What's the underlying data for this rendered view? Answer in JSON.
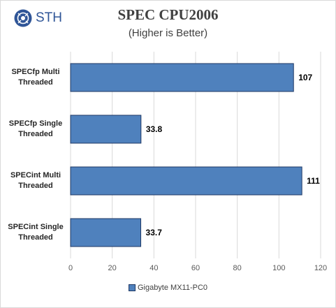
{
  "logo": {
    "text": "STH",
    "icon": "sth-gear-logo-icon"
  },
  "colors": {
    "bar_fill": "#4f81bd",
    "bar_stroke": "#1f3864",
    "grid": "#d9d9d9",
    "axis_text": "#595959"
  },
  "chart_data": {
    "type": "bar",
    "orientation": "horizontal",
    "title": "SPEC CPU2006",
    "subtitle": "(Higher is Better)",
    "categories": [
      "SPECfp Multi Threaded",
      "SPECfp Single Threaded",
      "SPECint Multi Threaded",
      "SPECint Single Threaded"
    ],
    "category_lines": [
      [
        "SPECfp Multi",
        "Threaded"
      ],
      [
        "SPECfp Single",
        "Threaded"
      ],
      [
        "SPECint Multi",
        "Threaded"
      ],
      [
        "SPECint Single",
        "Threaded"
      ]
    ],
    "series": [
      {
        "name": "Gigabyte MX11-PC0",
        "values": [
          107,
          33.8,
          111,
          33.7
        ]
      }
    ],
    "data_labels": [
      "107",
      "33.8",
      "111",
      "33.7"
    ],
    "xlim": [
      0,
      120
    ],
    "xticks": [
      0,
      20,
      40,
      60,
      80,
      100,
      120
    ],
    "grid": true,
    "legend_position": "bottom"
  }
}
